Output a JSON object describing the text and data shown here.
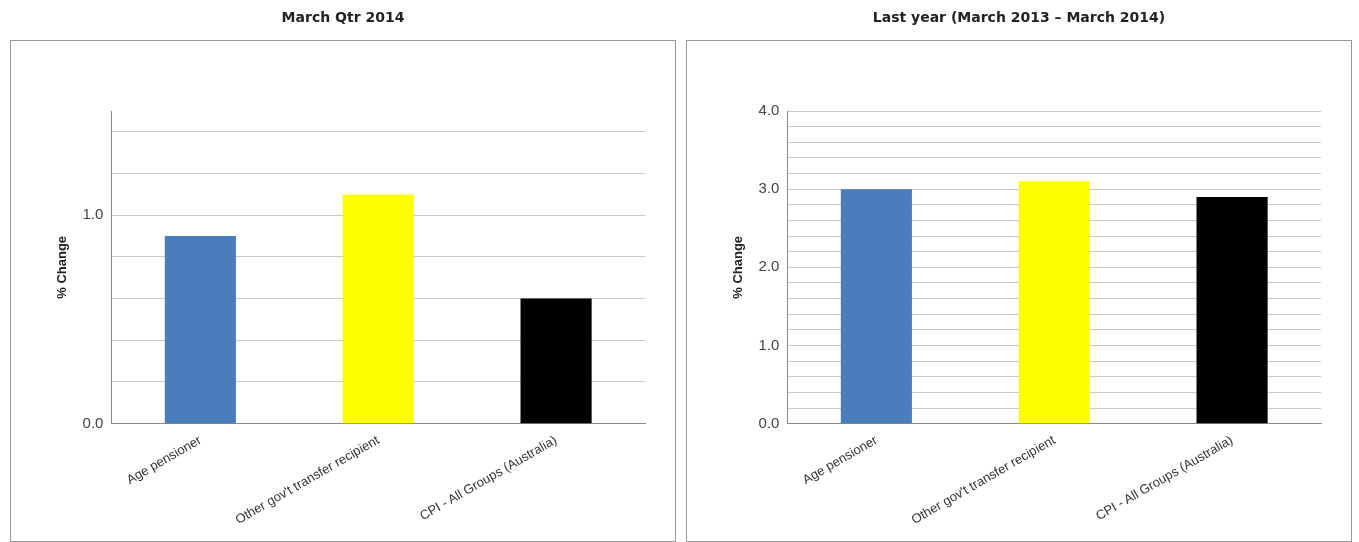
{
  "chart_data": [
    {
      "type": "bar",
      "title": "March Qtr 2014",
      "ylabel": "% Change",
      "categories": [
        "Age pensioner",
        "Other gov't transfer recipient",
        "CPI - All Groups (Australia)"
      ],
      "values": [
        0.9,
        1.1,
        0.6
      ],
      "colors": [
        "#4a7ebb",
        "#ffff00",
        "#000000"
      ],
      "ylim": [
        0,
        1.5
      ],
      "yticks": [
        {
          "value": 0,
          "label": "0.0"
        },
        {
          "value": 0.2,
          "label": null
        },
        {
          "value": 0.4,
          "label": null
        },
        {
          "value": 0.6,
          "label": null
        },
        {
          "value": 0.8,
          "label": null
        },
        {
          "value": 1,
          "label": "1.0"
        },
        {
          "value": 1.2,
          "label": null
        },
        {
          "value": 1.4,
          "label": null
        }
      ],
      "grid": "y"
    },
    {
      "type": "bar",
      "title": "Last year (March 2013 – March 2014)",
      "ylabel": "% Change",
      "categories": [
        "Age pensioner",
        "Other gov't transfer recipient",
        "CPI - All Groups (Australia)"
      ],
      "values": [
        3.0,
        3.1,
        2.9
      ],
      "colors": [
        "#4a7ebb",
        "#ffff00",
        "#000000"
      ],
      "ylim": [
        0,
        4
      ],
      "yticks": [
        {
          "value": 0,
          "label": "0.0"
        },
        {
          "value": 0.2,
          "label": null
        },
        {
          "value": 0.4,
          "label": null
        },
        {
          "value": 0.6,
          "label": null
        },
        {
          "value": 0.8,
          "label": null
        },
        {
          "value": 1,
          "label": "1.0"
        },
        {
          "value": 1.2,
          "label": null
        },
        {
          "value": 1.4,
          "label": null
        },
        {
          "value": 1.6,
          "label": null
        },
        {
          "value": 1.8,
          "label": null
        },
        {
          "value": 2,
          "label": "2.0"
        },
        {
          "value": 2.2,
          "label": null
        },
        {
          "value": 2.4,
          "label": null
        },
        {
          "value": 2.6,
          "label": null
        },
        {
          "value": 2.8,
          "label": null
        },
        {
          "value": 3,
          "label": "3.0"
        },
        {
          "value": 3.2,
          "label": null
        },
        {
          "value": 3.4,
          "label": null
        },
        {
          "value": 3.6,
          "label": null
        },
        {
          "value": 3.8,
          "label": null
        },
        {
          "value": 4,
          "label": "4.0"
        }
      ],
      "grid": "y"
    }
  ]
}
